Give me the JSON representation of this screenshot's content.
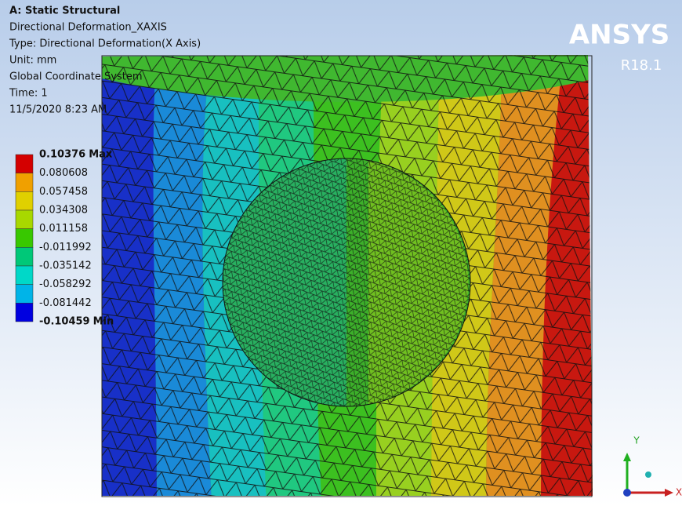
{
  "header": {
    "title": "A: Static Structural",
    "lines": [
      "Directional Deformation_XAXIS",
      "Type: Directional Deformation(X Axis)",
      "Unit: mm",
      "Global Coordinate System",
      "Time: 1",
      "11/5/2020 8:23 AM"
    ]
  },
  "logo": {
    "name": "ANSYS",
    "version": "R18.1"
  },
  "legend": {
    "max_label": "Max",
    "min_label": "Min",
    "levels": [
      "0.10376",
      "0.080608",
      "0.057458",
      "0.034308",
      "0.011158",
      "-0.011992",
      "-0.035142",
      "-0.058292",
      "-0.081442",
      "-0.10459"
    ]
  },
  "triad": {
    "y": "Y",
    "x": "X"
  }
}
